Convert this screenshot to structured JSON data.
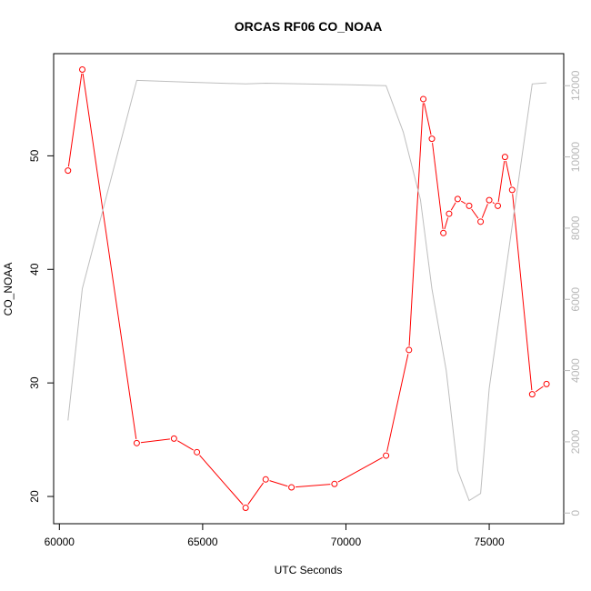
{
  "chart_data": {
    "type": "line",
    "title": "ORCAS RF06 CO_NOAA",
    "xlabel": "UTC Seconds",
    "ylabel": "CO_NOAA",
    "xlim": [
      59800,
      77600
    ],
    "ylim": [
      17.6,
      59.0
    ],
    "y2lim": [
      -300,
      12900
    ],
    "x_ticks": [
      60000,
      65000,
      70000,
      75000
    ],
    "y_ticks": [
      20,
      30,
      40,
      50
    ],
    "y2_ticks": [
      0,
      2000,
      4000,
      6000,
      8000,
      10000,
      12000
    ],
    "grid": false,
    "series": [
      {
        "color": "#ff0000",
        "axis": "left",
        "marker": "circle",
        "x": [
          60300,
          60800,
          62700,
          64000,
          64800,
          66500,
          67200,
          68100,
          69600,
          71400,
          72200,
          72700,
          73000,
          73400,
          73600,
          73900,
          74300,
          74700,
          75000,
          75300,
          75550,
          75800,
          76500,
          77000
        ],
        "y": [
          48.7,
          57.6,
          24.7,
          25.1,
          23.9,
          19.0,
          21.5,
          20.8,
          21.1,
          23.6,
          32.9,
          55.0,
          51.5,
          43.2,
          44.9,
          46.2,
          45.6,
          44.2,
          46.1,
          45.6,
          49.9,
          47.0,
          29.0,
          29.9
        ]
      },
      {
        "color": "#bebebe",
        "axis": "right",
        "marker": "none",
        "x": [
          60300,
          60800,
          62700,
          64500,
          66500,
          67200,
          68500,
          70000,
          71400,
          72000,
          72600,
          73000,
          73500,
          73900,
          74300,
          74700,
          75000,
          76500,
          77000
        ],
        "y": [
          2600,
          6300,
          12150,
          12100,
          12050,
          12070,
          12050,
          12030,
          12000,
          10700,
          8800,
          6300,
          4000,
          1200,
          350,
          550,
          3500,
          12050,
          12080
        ]
      }
    ]
  }
}
